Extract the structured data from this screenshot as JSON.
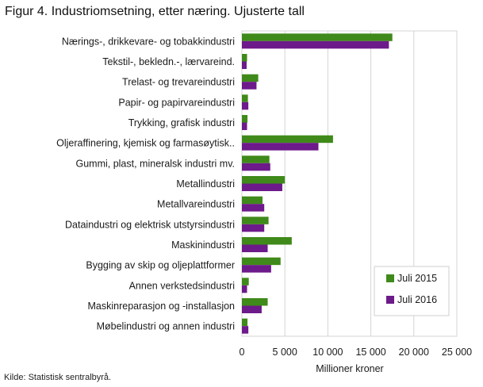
{
  "title": "Figur 4. Industriomsetning, etter næring. Ujusterte tall",
  "source": "Kilde: Statistisk sentralbyrå.",
  "chart_data": {
    "type": "bar",
    "orientation": "horizontal",
    "xlabel": "Millioner  kroner",
    "ylabel": "",
    "xlim": [
      0,
      25000
    ],
    "xticks": [
      0,
      5000,
      10000,
      15000,
      20000,
      25000
    ],
    "xtick_labels": [
      "0",
      "5 000",
      "10 000",
      "15 000",
      "20 000",
      "25 000"
    ],
    "grid": "vertical",
    "legend_position": "bottom-right",
    "categories": [
      "Nærings-, drikkevare- og tobakkindustri",
      "Tekstil-, bekledn.-, lærvareind.",
      "Trelast- og trevareindustri",
      "Papir- og papirvareindustri",
      "Trykking, grafisk industri",
      "Oljeraffinering, kjemisk og farmasøytisk..",
      "Gummi, plast, mineralsk industri mv.",
      "Metallindustri",
      "Metallvareindustri",
      "Dataindustri og elektrisk utstyrsindustri",
      "Maskinindustri",
      "Bygging av skip og oljeplattformer",
      "Annen verkstedsindustri",
      "Maskinreparasjon og -installasjon",
      "Møbelindustri og annen industri"
    ],
    "series": [
      {
        "name": "Juli 2015",
        "color": "#3f8a1a",
        "values": [
          17500,
          600,
          1900,
          700,
          650,
          10600,
          3200,
          5000,
          2400,
          3100,
          5800,
          4500,
          800,
          3000,
          650
        ]
      },
      {
        "name": "Juli 2016",
        "color": "#6d1a8a",
        "values": [
          17100,
          550,
          1700,
          750,
          600,
          8900,
          3300,
          4700,
          2600,
          2600,
          3000,
          3400,
          600,
          2300,
          750
        ]
      }
    ]
  }
}
